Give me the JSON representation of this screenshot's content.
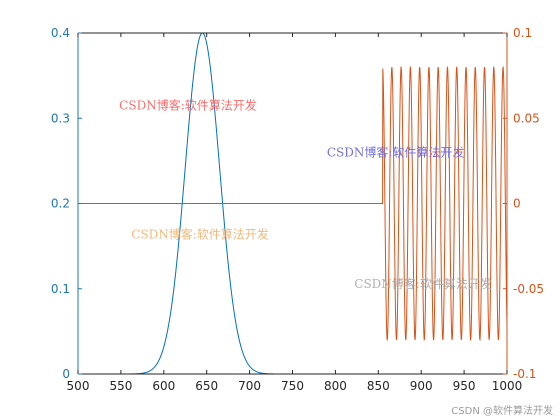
{
  "chart_data": {
    "type": "line",
    "xlim": [
      500,
      1000
    ],
    "x_ticks": [
      500,
      550,
      600,
      650,
      700,
      750,
      800,
      850,
      900,
      950,
      1000
    ],
    "y_left": {
      "lim": [
        0,
        0.4
      ],
      "ticks": [
        0,
        0.1,
        0.2,
        0.3,
        0.4
      ],
      "tick_labels": [
        "0",
        "0.1",
        "0.2",
        "0.3",
        "0.4"
      ],
      "color": "#1f77b4"
    },
    "y_right": {
      "lim": [
        -0.1,
        0.1
      ],
      "ticks": [
        -0.1,
        -0.05,
        0,
        0.05,
        0.1
      ],
      "tick_labels": [
        "-0.1",
        "-0.05",
        "0",
        "0.05",
        "0.1"
      ],
      "color": "#d95319"
    },
    "grid": false,
    "series": [
      {
        "axis": "left",
        "color": "#0072bd",
        "kind": "gaussian",
        "mean": 645,
        "sigma": 20,
        "peak": 0.4,
        "x_range": [
          500,
          1000
        ]
      },
      {
        "axis": "right",
        "color": "#d95319",
        "kind": "piecewise-sine",
        "flat_until": 855,
        "flat_value": 0,
        "amplitude": 0.08,
        "period": 10.8,
        "x_range": [
          500,
          1000
        ]
      }
    ],
    "annotations": [
      {
        "text": "CSDN博客:软件算法开发",
        "x": 548,
        "y": 0.31,
        "color": "#ff6b6b"
      },
      {
        "text": "CSDN博客:软件算法开发",
        "x": 790,
        "y": 0.255,
        "color": "#7070e0"
      },
      {
        "text": "CSDN博客:软件算法开发",
        "x": 562,
        "y": 0.159,
        "color": "#f5b87a"
      },
      {
        "text": "CSDN博客:软件算法开发",
        "x": 822,
        "y": 0.101,
        "color": "#b0b0b0"
      }
    ]
  },
  "footer_watermark": "CSDN @软件算法开发"
}
